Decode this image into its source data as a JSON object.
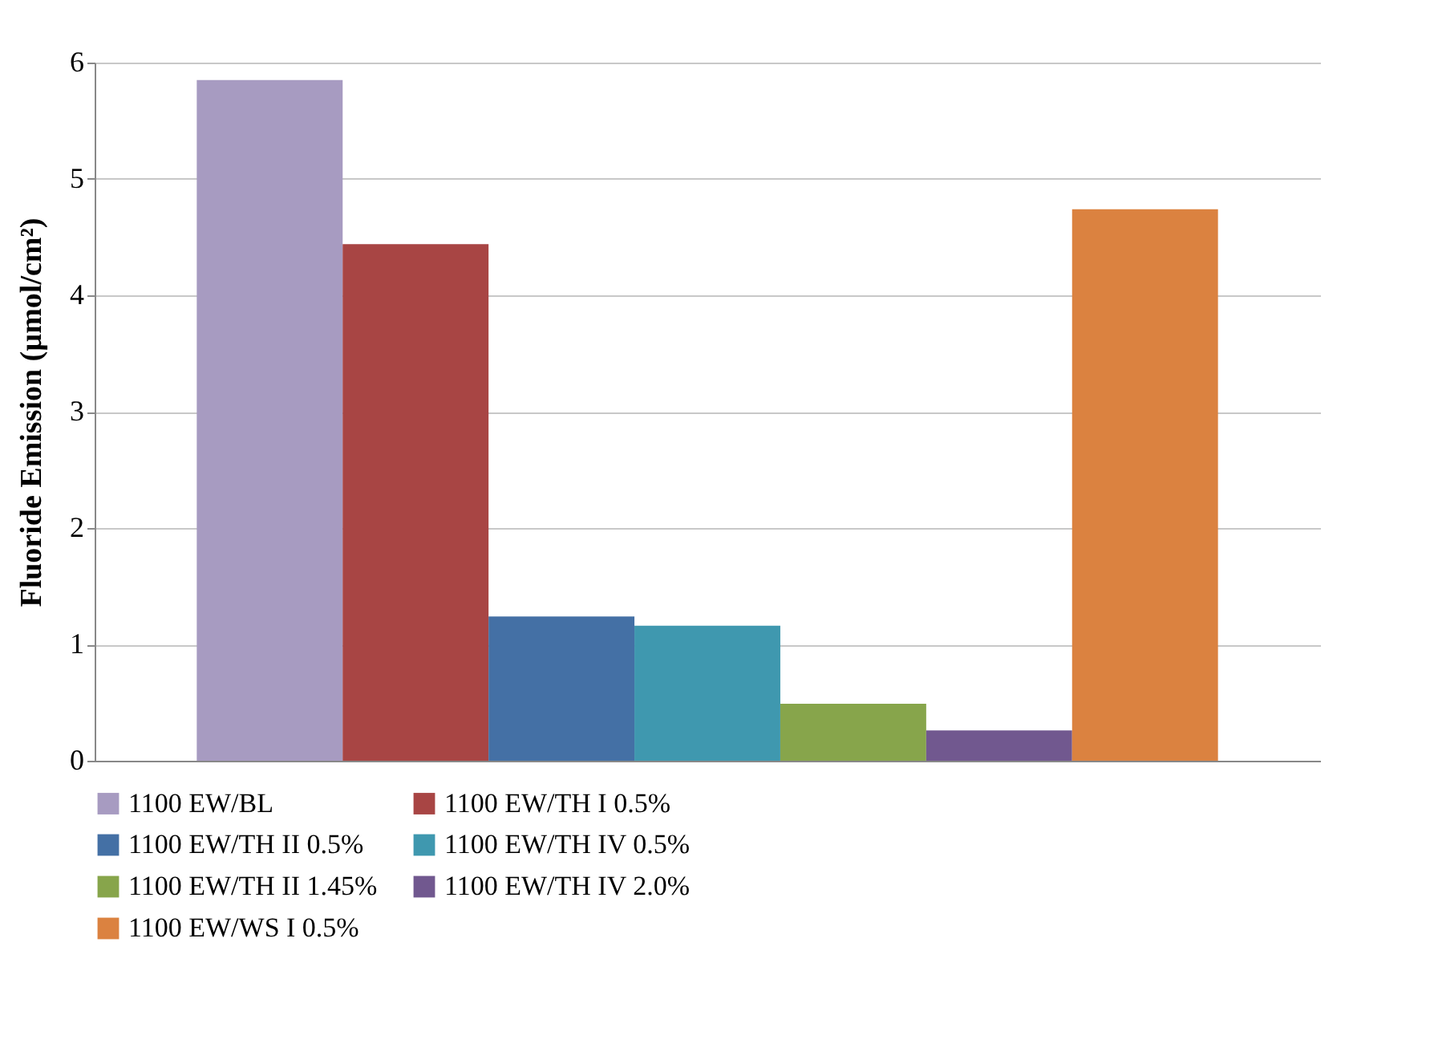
{
  "chart_data": {
    "type": "bar",
    "ylabel": "Fluoride Emission (µmol/cm²)",
    "categories": [
      null
    ],
    "series": [
      {
        "name": "1100 EW/BL",
        "color": "#a79bc1",
        "values": [
          5.85
        ]
      },
      {
        "name": "1100 EW/TH I 0.5%",
        "color": "#a84544",
        "values": [
          4.44
        ]
      },
      {
        "name": "1100 EW/TH II 0.5%",
        "color": "#4470a5",
        "values": [
          1.24
        ]
      },
      {
        "name": "1100 EW/TH IV 0.5%",
        "color": "#3f98af",
        "values": [
          1.16
        ]
      },
      {
        "name": "1100 EW/TH II 1.45%",
        "color": "#87a54b",
        "values": [
          0.49
        ]
      },
      {
        "name": "1100 EW/TH IV 2.0%",
        "color": "#71588f",
        "values": [
          0.26
        ]
      },
      {
        "name": "1100 EW/WS I 0.5%",
        "color": "#db8240",
        "values": [
          4.74
        ]
      }
    ],
    "ylim": [
      0,
      6
    ],
    "yticks": [
      0,
      1,
      2,
      3,
      4,
      5,
      6
    ],
    "grid": "y",
    "legend": "bottom",
    "tick_labels": "y"
  }
}
